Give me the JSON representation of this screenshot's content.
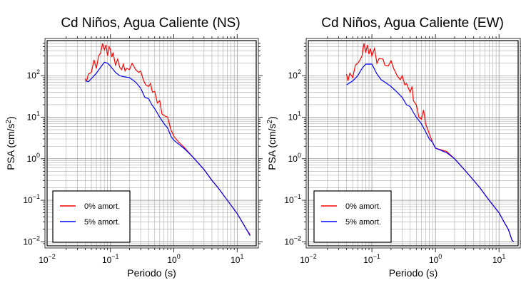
{
  "chart_data": [
    {
      "type": "line",
      "title": "Cd Niños, Agua Caliente (NS)",
      "xlabel": "Periodo (s)",
      "ylabel": "PSA (cm/s",
      "ylabel_sup": "2",
      "ylabel_end": ")",
      "xscale": "log",
      "yscale": "log",
      "xlim": [
        0.01,
        20
      ],
      "ylim": [
        0.008,
        700
      ],
      "x_ticks": [
        {
          "base": "10",
          "exp": "−2",
          "value": 0.01
        },
        {
          "base": "10",
          "exp": "−1",
          "value": 0.1
        },
        {
          "base": "10",
          "exp": "0",
          "value": 1
        },
        {
          "base": "10",
          "exp": "1",
          "value": 10
        }
      ],
      "y_ticks": [
        {
          "base": "10",
          "exp": "−2",
          "value": 0.01
        },
        {
          "base": "10",
          "exp": "−1",
          "value": 0.1
        },
        {
          "base": "10",
          "exp": "0",
          "value": 1
        },
        {
          "base": "10",
          "exp": "1",
          "value": 10
        },
        {
          "base": "10",
          "exp": "2",
          "value": 100
        }
      ],
      "grid": true,
      "legend_position": "bottom-left",
      "series": [
        {
          "name": "0% amort.",
          "color": "#ff0000",
          "points": [
            [
              0.04,
              85
            ],
            [
              0.042,
              75
            ],
            [
              0.045,
              110
            ],
            [
              0.05,
              120
            ],
            [
              0.055,
              240
            ],
            [
              0.06,
              150
            ],
            [
              0.065,
              300
            ],
            [
              0.07,
              350
            ],
            [
              0.075,
              600
            ],
            [
              0.08,
              420
            ],
            [
              0.085,
              550
            ],
            [
              0.09,
              300
            ],
            [
              0.095,
              500
            ],
            [
              0.1,
              420
            ],
            [
              0.105,
              280
            ],
            [
              0.11,
              360
            ],
            [
              0.12,
              180
            ],
            [
              0.13,
              250
            ],
            [
              0.14,
              160
            ],
            [
              0.15,
              140
            ],
            [
              0.16,
              190
            ],
            [
              0.17,
              130
            ],
            [
              0.18,
              150
            ],
            [
              0.2,
              140
            ],
            [
              0.22,
              200
            ],
            [
              0.25,
              140
            ],
            [
              0.28,
              120
            ],
            [
              0.3,
              130
            ],
            [
              0.33,
              80
            ],
            [
              0.36,
              60
            ],
            [
              0.4,
              55
            ],
            [
              0.43,
              65
            ],
            [
              0.46,
              40
            ],
            [
              0.5,
              42
            ],
            [
              0.55,
              22
            ],
            [
              0.6,
              25
            ],
            [
              0.65,
              12
            ],
            [
              0.7,
              11
            ],
            [
              0.8,
              10
            ],
            [
              0.9,
              5
            ],
            [
              1,
              3.5
            ],
            [
              1.2,
              2.5
            ],
            [
              1.5,
              1.8
            ],
            [
              2,
              1.1
            ],
            [
              3,
              0.55
            ],
            [
              4,
              0.3
            ],
            [
              5,
              0.2
            ],
            [
              7,
              0.1
            ],
            [
              10,
              0.048
            ],
            [
              12,
              0.03
            ],
            [
              14,
              0.02
            ],
            [
              16,
              0.015
            ]
          ]
        },
        {
          "name": "5% amort.",
          "color": "#0000ff",
          "points": [
            [
              0.04,
              75
            ],
            [
              0.045,
              72
            ],
            [
              0.05,
              85
            ],
            [
              0.06,
              115
            ],
            [
              0.07,
              160
            ],
            [
              0.08,
              210
            ],
            [
              0.09,
              200
            ],
            [
              0.1,
              170
            ],
            [
              0.12,
              120
            ],
            [
              0.14,
              100
            ],
            [
              0.16,
              95
            ],
            [
              0.2,
              90
            ],
            [
              0.25,
              70
            ],
            [
              0.3,
              50
            ],
            [
              0.35,
              30
            ],
            [
              0.4,
              28
            ],
            [
              0.45,
              20
            ],
            [
              0.5,
              16
            ],
            [
              0.6,
              10
            ],
            [
              0.7,
              7
            ],
            [
              0.8,
              5.5
            ],
            [
              0.9,
              3.5
            ],
            [
              1,
              2.8
            ],
            [
              1.5,
              1.7
            ],
            [
              2,
              1.1
            ],
            [
              3,
              0.55
            ],
            [
              4,
              0.3
            ],
            [
              5,
              0.2
            ],
            [
              7,
              0.1
            ],
            [
              10,
              0.048
            ],
            [
              12,
              0.03
            ],
            [
              14,
              0.02
            ],
            [
              16,
              0.014
            ]
          ]
        }
      ]
    },
    {
      "type": "line",
      "title": "Cd Niños, Agua Caliente (EW)",
      "xlabel": "Periodo (s)",
      "ylabel": "PSA (cm/s",
      "ylabel_sup": "2",
      "ylabel_end": ")",
      "xscale": "log",
      "yscale": "log",
      "xlim": [
        0.01,
        20
      ],
      "ylim": [
        0.008,
        700
      ],
      "x_ticks": [
        {
          "base": "10",
          "exp": "−2",
          "value": 0.01
        },
        {
          "base": "10",
          "exp": "−1",
          "value": 0.1
        },
        {
          "base": "10",
          "exp": "0",
          "value": 1
        },
        {
          "base": "10",
          "exp": "1",
          "value": 10
        }
      ],
      "y_ticks": [
        {
          "base": "10",
          "exp": "−2",
          "value": 0.01
        },
        {
          "base": "10",
          "exp": "−1",
          "value": 0.1
        },
        {
          "base": "10",
          "exp": "0",
          "value": 1
        },
        {
          "base": "10",
          "exp": "1",
          "value": 10
        },
        {
          "base": "10",
          "exp": "2",
          "value": 100
        }
      ],
      "grid": true,
      "legend_position": "bottom-left",
      "series": [
        {
          "name": "0% amort.",
          "color": "#ff0000",
          "points": [
            [
              0.04,
              110
            ],
            [
              0.042,
              75
            ],
            [
              0.045,
              115
            ],
            [
              0.05,
              90
            ],
            [
              0.055,
              180
            ],
            [
              0.06,
              200
            ],
            [
              0.065,
              240
            ],
            [
              0.07,
              300
            ],
            [
              0.075,
              600
            ],
            [
              0.08,
              360
            ],
            [
              0.085,
              550
            ],
            [
              0.09,
              330
            ],
            [
              0.095,
              450
            ],
            [
              0.1,
              300
            ],
            [
              0.11,
              450
            ],
            [
              0.12,
              200
            ],
            [
              0.13,
              260
            ],
            [
              0.15,
              250
            ],
            [
              0.16,
              180
            ],
            [
              0.18,
              170
            ],
            [
              0.2,
              230
            ],
            [
              0.22,
              150
            ],
            [
              0.25,
              100
            ],
            [
              0.28,
              80
            ],
            [
              0.3,
              100
            ],
            [
              0.33,
              60
            ],
            [
              0.35,
              65
            ],
            [
              0.4,
              40
            ],
            [
              0.43,
              55
            ],
            [
              0.45,
              25
            ],
            [
              0.5,
              20
            ],
            [
              0.55,
              10
            ],
            [
              0.6,
              9
            ],
            [
              0.65,
              15
            ],
            [
              0.7,
              7
            ],
            [
              0.8,
              4
            ],
            [
              0.9,
              2.5
            ],
            [
              1,
              1.8
            ],
            [
              1.5,
              1.5
            ],
            [
              2,
              1
            ],
            [
              3,
              0.5
            ],
            [
              4,
              0.3
            ],
            [
              5,
              0.2
            ],
            [
              7,
              0.1
            ],
            [
              10,
              0.05
            ],
            [
              12,
              0.03
            ],
            [
              14,
              0.02
            ],
            [
              16,
              0.011
            ],
            [
              17,
              0.01
            ]
          ]
        },
        {
          "name": "5% amort.",
          "color": "#0000ff",
          "points": [
            [
              0.04,
              60
            ],
            [
              0.05,
              75
            ],
            [
              0.06,
              100
            ],
            [
              0.07,
              150
            ],
            [
              0.08,
              190
            ],
            [
              0.09,
              190
            ],
            [
              0.1,
              190
            ],
            [
              0.12,
              110
            ],
            [
              0.14,
              80
            ],
            [
              0.16,
              70
            ],
            [
              0.2,
              55
            ],
            [
              0.25,
              40
            ],
            [
              0.3,
              30
            ],
            [
              0.35,
              20
            ],
            [
              0.4,
              18
            ],
            [
              0.45,
              13
            ],
            [
              0.5,
              10
            ],
            [
              0.6,
              7
            ],
            [
              0.7,
              4.5
            ],
            [
              0.8,
              3
            ],
            [
              0.9,
              2.5
            ],
            [
              1,
              1.8
            ],
            [
              1.5,
              1.4
            ],
            [
              2,
              1
            ],
            [
              3,
              0.5
            ],
            [
              4,
              0.3
            ],
            [
              5,
              0.2
            ],
            [
              7,
              0.1
            ],
            [
              10,
              0.05
            ],
            [
              12,
              0.03
            ],
            [
              14,
              0.02
            ],
            [
              16,
              0.011
            ],
            [
              17,
              0.01
            ]
          ]
        }
      ]
    }
  ]
}
